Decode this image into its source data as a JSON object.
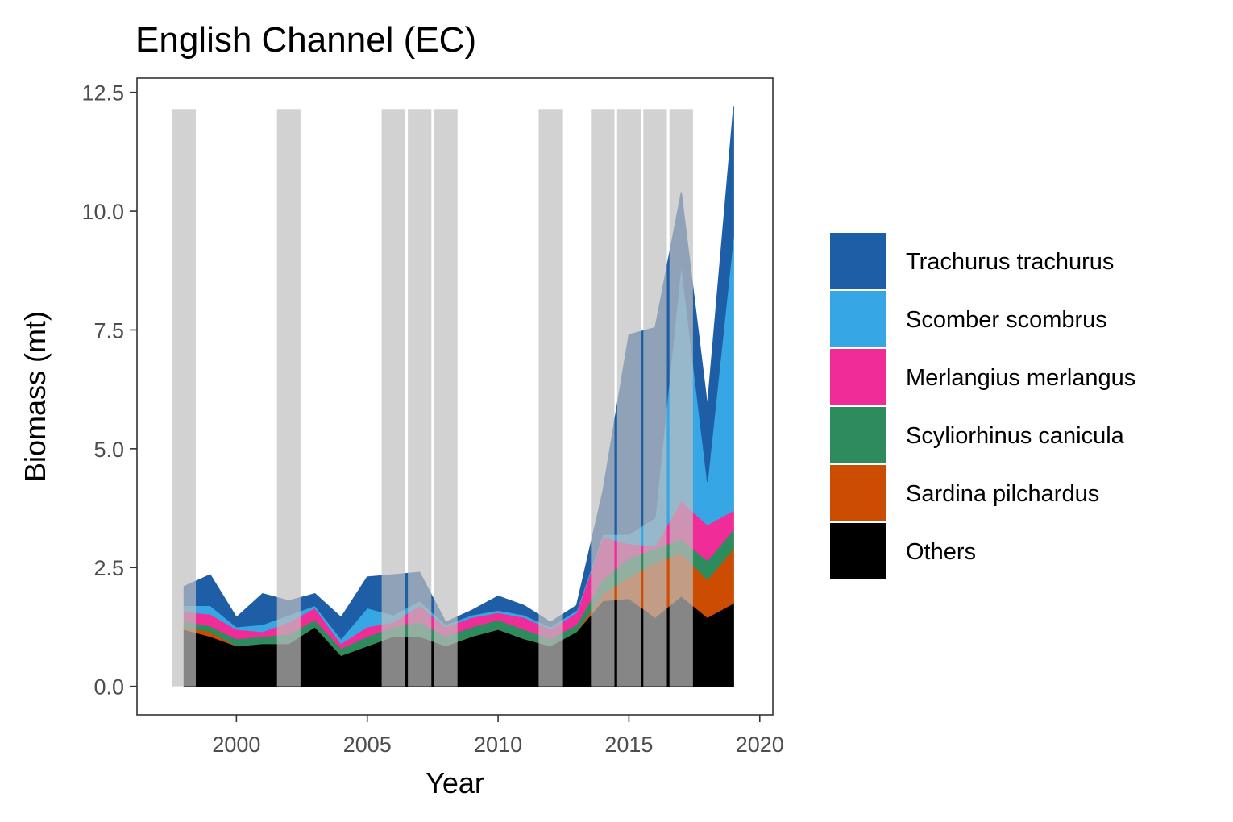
{
  "chart_data": {
    "type": "area",
    "stacked": true,
    "title": "English Channel (EC)",
    "xlabel": "Year",
    "ylabel": "Biomass (mt)",
    "xlim": [
      1996.2,
      2020.5
    ],
    "ylim": [
      -0.6,
      12.8
    ],
    "x_ticks": [
      2000,
      2005,
      2010,
      2015,
      2020
    ],
    "y_ticks": [
      0.0,
      2.5,
      5.0,
      7.5,
      10.0,
      12.5
    ],
    "y_tick_labels": [
      "0.0",
      "2.5",
      "5.0",
      "7.5",
      "10.0",
      "12.5"
    ],
    "grid": false,
    "legend_position": "right",
    "x": [
      1998,
      1999,
      2000,
      2001,
      2002,
      2003,
      2004,
      2005,
      2006,
      2007,
      2008,
      2009,
      2010,
      2011,
      2012,
      2013,
      2014,
      2015,
      2016,
      2017,
      2018,
      2019
    ],
    "series": [
      {
        "name": "Others",
        "color": "#000000",
        "values": [
          1.2,
          1.05,
          0.85,
          0.9,
          0.9,
          1.25,
          0.65,
          0.85,
          1.05,
          1.05,
          0.85,
          1.05,
          1.2,
          1.0,
          0.85,
          1.15,
          1.8,
          1.85,
          1.45,
          1.9,
          1.45,
          1.75
        ]
      },
      {
        "name": "Sardina pilchardus",
        "color": "#CC4C02",
        "values": [
          0.05,
          0.1,
          0.0,
          0.0,
          0.0,
          0.0,
          0.0,
          0.0,
          0.0,
          0.0,
          0.0,
          0.0,
          0.0,
          0.0,
          0.0,
          0.0,
          0.15,
          0.45,
          1.15,
          0.9,
          0.8,
          1.15
        ]
      },
      {
        "name": "Scyliorhinus canicula",
        "color": "#2E8B5E",
        "values": [
          0.12,
          0.12,
          0.15,
          0.15,
          0.2,
          0.15,
          0.15,
          0.2,
          0.2,
          0.3,
          0.2,
          0.2,
          0.2,
          0.2,
          0.15,
          0.15,
          0.3,
          0.4,
          0.3,
          0.3,
          0.4,
          0.4
        ]
      },
      {
        "name": "Merlangius merlangus",
        "color": "#F02C98",
        "values": [
          0.2,
          0.25,
          0.2,
          0.1,
          0.25,
          0.25,
          0.1,
          0.2,
          0.1,
          0.35,
          0.2,
          0.2,
          0.15,
          0.25,
          0.2,
          0.25,
          0.9,
          0.3,
          0.05,
          0.8,
          0.75,
          0.4
        ]
      },
      {
        "name": "Scomber scombrus",
        "color": "#36A7E4",
        "values": [
          0.13,
          0.18,
          0.05,
          0.15,
          0.15,
          0.05,
          0.1,
          0.4,
          0.15,
          0.1,
          0.05,
          0.05,
          0.05,
          0.05,
          0.05,
          0.05,
          0.05,
          0.2,
          0.6,
          5.0,
          0.9,
          5.8
        ]
      },
      {
        "name": "Trachurus trachurus",
        "color": "#1E5EA6",
        "values": [
          0.4,
          0.65,
          0.2,
          0.65,
          0.3,
          0.25,
          0.45,
          0.65,
          0.85,
          0.6,
          0.05,
          0.1,
          0.3,
          0.2,
          0.1,
          0.1,
          0.9,
          4.2,
          4.0,
          1.5,
          1.6,
          2.7
        ]
      }
    ],
    "legend_order": [
      "Trachurus trachurus",
      "Scomber scombrus",
      "Merlangius merlangus",
      "Scyliorhinus canicula",
      "Sardina pilchardus",
      "Others"
    ],
    "shaded_years": [
      1998,
      2002,
      2006,
      2007,
      2008,
      2012,
      2014,
      2015,
      2016,
      2017
    ],
    "shade_range": [
      0,
      12.15
    ],
    "shade_color": "#BFBFBF"
  }
}
